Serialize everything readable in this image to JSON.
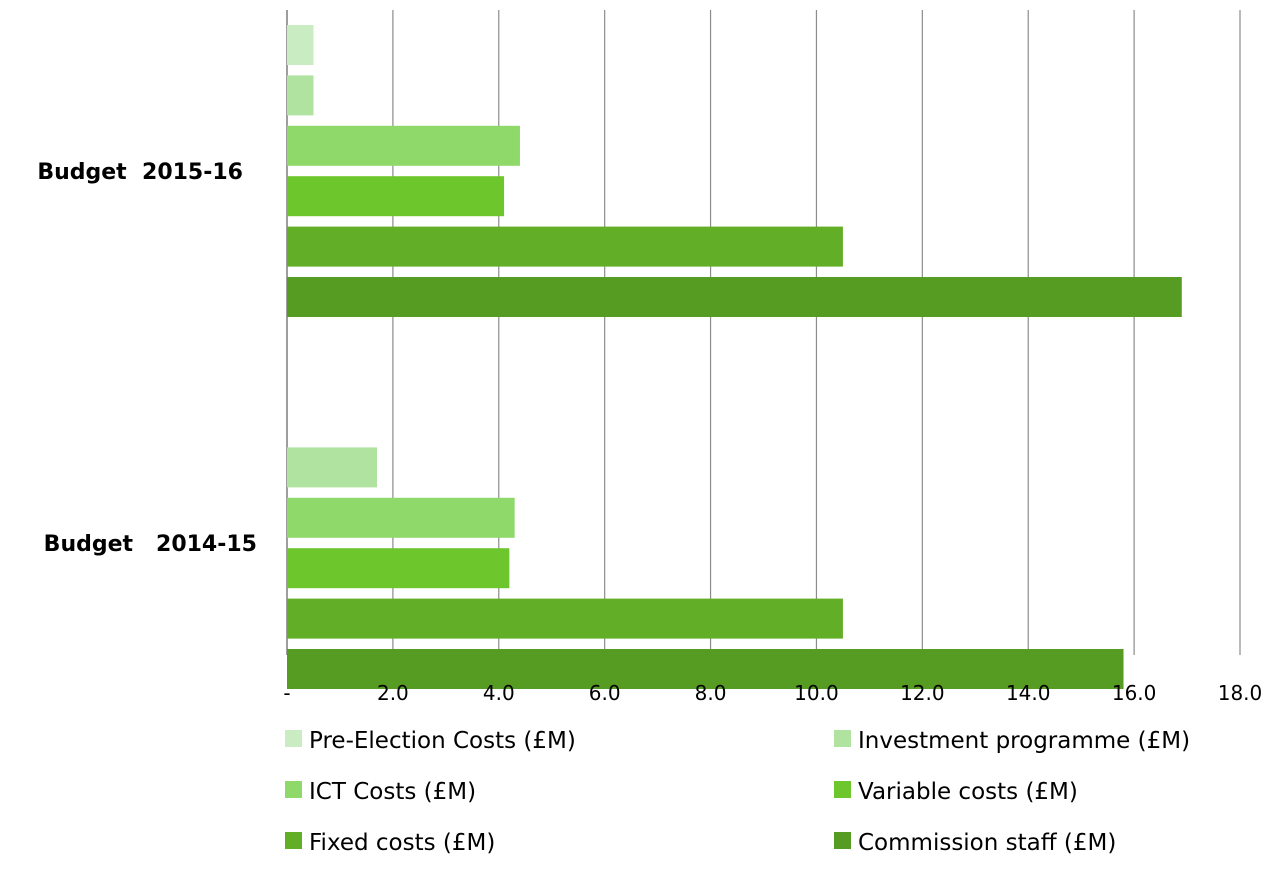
{
  "chart_data": {
    "type": "bar",
    "orientation": "horizontal",
    "categories": [
      "Budget  2015-16",
      "Budget   2014-15"
    ],
    "series": [
      {
        "name": "Pre-Election Costs (£M)",
        "color": "#c9ecc3",
        "values": [
          0.5,
          null
        ]
      },
      {
        "name": "Investment programme (£M)",
        "color": "#b0e3a0",
        "values": [
          0.5,
          1.7
        ]
      },
      {
        "name": "ICT Costs (£M)",
        "color": "#8fd86a",
        "values": [
          4.4,
          4.3
        ]
      },
      {
        "name": "Variable costs (£M)",
        "color": "#6dc62b",
        "values": [
          4.1,
          4.2
        ]
      },
      {
        "name": "Fixed costs (£M)",
        "color": "#62ae26",
        "values": [
          10.5,
          10.5
        ]
      },
      {
        "name": "Commission staff (£M)",
        "color": "#569b22",
        "values": [
          16.9,
          15.8
        ]
      }
    ],
    "xlim": [
      0,
      18
    ],
    "x_ticks": [
      "-",
      "2.0",
      "4.0",
      "6.0",
      "8.0",
      "10.0",
      "12.0",
      "14.0",
      "16.0",
      "18.0"
    ],
    "x_tick_values": [
      0,
      2,
      4,
      6,
      8,
      10,
      12,
      14,
      16,
      18
    ],
    "grid": "vertical",
    "legend_position": "bottom",
    "title": "",
    "xlabel": "",
    "ylabel": ""
  }
}
